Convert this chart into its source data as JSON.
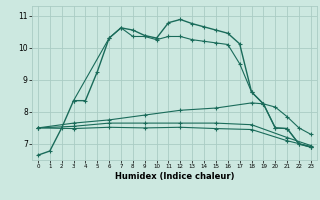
{
  "title": "",
  "xlabel": "Humidex (Indice chaleur)",
  "bg_color": "#cce8e0",
  "grid_color": "#aaccc4",
  "line_color": "#1a6b5a",
  "xlim": [
    -0.5,
    23.5
  ],
  "ylim": [
    6.5,
    11.3
  ],
  "xticks": [
    0,
    1,
    2,
    3,
    4,
    5,
    6,
    7,
    8,
    9,
    10,
    11,
    12,
    13,
    14,
    15,
    16,
    17,
    18,
    19,
    20,
    21,
    22,
    23
  ],
  "yticks": [
    7,
    8,
    9,
    10,
    11
  ],
  "line1_x": [
    0,
    1,
    2,
    3,
    4,
    5,
    6,
    7,
    8,
    9,
    10,
    11,
    12,
    13,
    14,
    15,
    16,
    17,
    18,
    19,
    20,
    21,
    22,
    23
  ],
  "line1_y": [
    6.65,
    6.78,
    7.5,
    8.35,
    8.35,
    9.25,
    10.3,
    10.62,
    10.55,
    10.38,
    10.3,
    10.78,
    10.88,
    10.75,
    10.65,
    10.55,
    10.45,
    10.12,
    8.62,
    8.25,
    7.5,
    7.48,
    7.0,
    6.9
  ],
  "line2_x": [
    3,
    6,
    7,
    8,
    9,
    10,
    11,
    12,
    13,
    14,
    15,
    16,
    17,
    18,
    19,
    20,
    21,
    22,
    23
  ],
  "line2_y": [
    8.35,
    10.3,
    10.62,
    10.35,
    10.35,
    10.25,
    10.35,
    10.35,
    10.25,
    10.2,
    10.15,
    10.1,
    9.5,
    8.62,
    8.25,
    7.5,
    7.48,
    7.0,
    6.9
  ],
  "line3_x": [
    0,
    3,
    6,
    9,
    12,
    15,
    18,
    19,
    20,
    21,
    22,
    23
  ],
  "line3_y": [
    7.5,
    7.65,
    7.75,
    7.9,
    8.05,
    8.12,
    8.28,
    8.25,
    8.15,
    7.85,
    7.5,
    7.3
  ],
  "line4_x": [
    0,
    3,
    6,
    9,
    12,
    15,
    18,
    21,
    23
  ],
  "line4_y": [
    7.5,
    7.55,
    7.65,
    7.65,
    7.65,
    7.65,
    7.6,
    7.2,
    6.95
  ],
  "line5_x": [
    0,
    3,
    6,
    9,
    12,
    15,
    18,
    21,
    23
  ],
  "line5_y": [
    7.5,
    7.48,
    7.52,
    7.5,
    7.52,
    7.48,
    7.45,
    7.1,
    6.92
  ]
}
